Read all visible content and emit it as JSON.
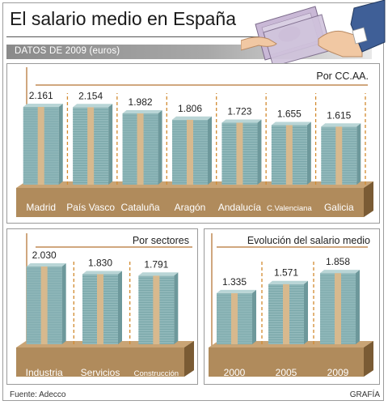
{
  "header": {
    "title": "El salario medio en España",
    "subtitle": "DATOS DE 2009 (euros)"
  },
  "footer": {
    "source": "Fuente: Adecco",
    "credit": "GRAFÍA"
  },
  "colors": {
    "bar": "#8fb7b9",
    "bar_top": "#b9d5d6",
    "bar_side": "#6d989b",
    "band": "#d7b98e",
    "base": "#b08b5c",
    "base_dark": "#7a5b34",
    "dash": "#d28a30",
    "panel_rule": "#c08a55"
  },
  "chart_data": [
    {
      "type": "bar",
      "title": "Por CC.AA.",
      "categories": [
        "Madrid",
        "País Vasco",
        "Cataluña",
        "Aragón",
        "Andalucía",
        "C.Valenciana",
        "Galicia"
      ],
      "values": [
        2161,
        2154,
        1982,
        1806,
        1723,
        1655,
        1615
      ],
      "value_labels": [
        "2.161",
        "2.154",
        "1.982",
        "1.806",
        "1.723",
        "1.655",
        "1.615"
      ],
      "unit": "euros",
      "ylim": [
        0,
        2161
      ]
    },
    {
      "type": "bar",
      "title": "Por sectores",
      "categories": [
        "Industria",
        "Servicios",
        "Construcción"
      ],
      "values": [
        2030,
        1830,
        1791
      ],
      "value_labels": [
        "2.030",
        "1.830",
        "1.791"
      ],
      "unit": "euros",
      "ylim": [
        0,
        2030
      ]
    },
    {
      "type": "bar",
      "title": "Evolución del salario medio",
      "categories": [
        "2000",
        "2005",
        "2009"
      ],
      "values": [
        1335,
        1571,
        1858
      ],
      "value_labels": [
        "1.335",
        "1.571",
        "1.858"
      ],
      "unit": "euros",
      "ylim": [
        0,
        2030
      ]
    }
  ]
}
